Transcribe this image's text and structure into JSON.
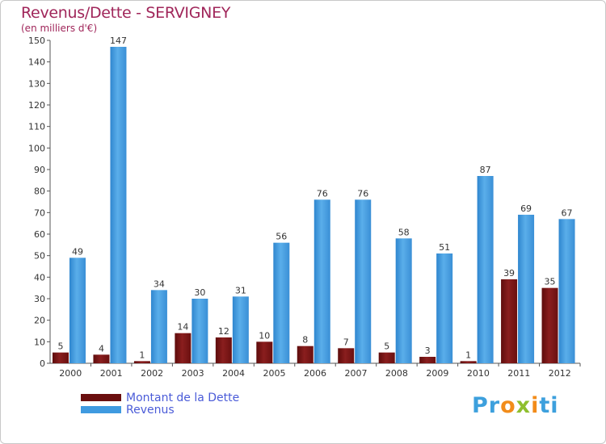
{
  "title": "Revenus/Dette - SERVIGNEY",
  "subtitle": "(en milliers d'€)",
  "colors": {
    "title": "#a0265a",
    "debt": "#7a1212",
    "revenue": "#3f9ae0",
    "legend_text": "#4a5bd8"
  },
  "legend": {
    "debt_label": "Montant de la Dette",
    "revenue_label": "Revenus"
  },
  "logo": {
    "text_parts": [
      "Pr",
      "o",
      "x",
      "i",
      "ti"
    ]
  },
  "chart_data": {
    "type": "bar",
    "title": "Revenus/Dette - SERVIGNEY",
    "subtitle": "(en milliers d'€)",
    "categories": [
      "2000",
      "2001",
      "2002",
      "2003",
      "2004",
      "2005",
      "2006",
      "2007",
      "2008",
      "2009",
      "2010",
      "2011",
      "2012"
    ],
    "series": [
      {
        "name": "Montant de la Dette",
        "values": [
          5,
          4,
          1,
          14,
          12,
          10,
          8,
          7,
          5,
          3,
          1,
          39,
          35
        ]
      },
      {
        "name": "Revenus",
        "values": [
          49,
          147,
          34,
          30,
          31,
          56,
          76,
          76,
          58,
          51,
          87,
          69,
          67
        ]
      }
    ],
    "ylim": [
      0,
      150
    ],
    "yticks": [
      0,
      10,
      20,
      30,
      40,
      50,
      60,
      70,
      80,
      90,
      100,
      110,
      120,
      130,
      140,
      150
    ],
    "grid": false,
    "legend_position": "bottom-left"
  }
}
